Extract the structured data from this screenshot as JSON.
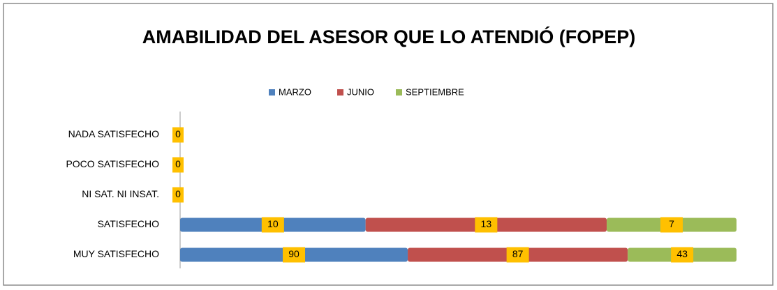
{
  "chart_data": {
    "type": "bar",
    "orientation": "horizontal",
    "stacking": "percent",
    "title": "AMABILIDAD DEL ASESOR QUE LO ATENDIÓ (FOPEP)",
    "categories": [
      "NADA SATISFECHO",
      "POCO SATISFECHO",
      "NI SAT. NI INSAT.",
      "SATISFECHO",
      "MUY SATISFECHO"
    ],
    "series": [
      {
        "name": "MARZO",
        "color": "#4f81bd",
        "values": [
          0,
          0,
          0,
          10,
          90
        ]
      },
      {
        "name": "JUNIO",
        "color": "#c0504d",
        "values": [
          0,
          0,
          0,
          13,
          87
        ]
      },
      {
        "name": "SEPTIEMBRE",
        "color": "#9bbb59",
        "values": [
          0,
          0,
          0,
          7,
          43
        ]
      }
    ],
    "legend": "top"
  }
}
